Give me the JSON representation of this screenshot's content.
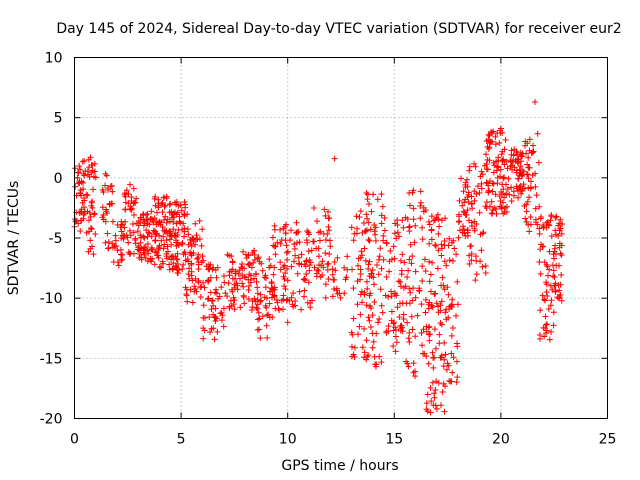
{
  "chart_data": {
    "type": "scatter",
    "title": "Day 145 of 2024, Sidereal Day-to-day VTEC variation (SDTVAR) for receiver eur2",
    "xlabel": "GPS time / hours",
    "ylabel": "SDTVAR / TECUs",
    "xlim": [
      0,
      25
    ],
    "ylim": [
      -20,
      10
    ],
    "xticks": [
      0,
      5,
      10,
      15,
      20,
      25
    ],
    "yticks": [
      10,
      5,
      0,
      -5,
      -10,
      -15,
      -20
    ],
    "grid": true,
    "marker": "+",
    "series": [
      {
        "name": "SDTVAR",
        "color": "#ff0000",
        "clusters": [
          {
            "x0": 0.0,
            "x1": 0.55,
            "ymin": -4.5,
            "ymax": 1.5,
            "n": 45
          },
          {
            "x0": 0.55,
            "x1": 1.0,
            "ymin": -6.5,
            "ymax": 1.8,
            "n": 35
          },
          {
            "x0": 1.3,
            "x1": 1.8,
            "ymin": -6.0,
            "ymax": 0.5,
            "n": 30
          },
          {
            "x0": 1.8,
            "x1": 2.3,
            "ymin": -7.5,
            "ymax": -3.5,
            "n": 25
          },
          {
            "x0": 2.3,
            "x1": 2.9,
            "ymin": -6.5,
            "ymax": -0.5,
            "n": 40
          },
          {
            "x0": 2.9,
            "x1": 3.6,
            "ymin": -7.0,
            "ymax": -3.0,
            "n": 55
          },
          {
            "x0": 3.6,
            "x1": 4.4,
            "ymin": -7.5,
            "ymax": -1.5,
            "n": 75
          },
          {
            "x0": 4.4,
            "x1": 5.2,
            "ymin": -8.0,
            "ymax": -2.0,
            "n": 80
          },
          {
            "x0": 5.2,
            "x1": 6.0,
            "ymin": -10.5,
            "ymax": -3.0,
            "n": 60
          },
          {
            "x0": 6.0,
            "x1": 7.0,
            "ymin": -13.5,
            "ymax": -6.5,
            "n": 55
          },
          {
            "x0": 7.0,
            "x1": 8.5,
            "ymin": -11.0,
            "ymax": -6.0,
            "n": 80
          },
          {
            "x0": 8.5,
            "x1": 9.3,
            "ymin": -13.5,
            "ymax": -6.5,
            "n": 50
          },
          {
            "x0": 9.3,
            "x1": 10.5,
            "ymin": -11.0,
            "ymax": -3.5,
            "n": 70
          },
          {
            "x0": 10.5,
            "x1": 11.2,
            "ymin": -11.0,
            "ymax": -4.0,
            "n": 35
          },
          {
            "x0": 11.2,
            "x1": 12.0,
            "ymin": -10.0,
            "ymax": -2.5,
            "n": 40
          },
          {
            "x0": 12.0,
            "x1": 12.8,
            "ymin": -10.0,
            "ymax": -6.5,
            "n": 20
          },
          {
            "x0": 13.0,
            "x1": 13.6,
            "ymin": -15.0,
            "ymax": -2.5,
            "n": 40
          },
          {
            "x0": 13.6,
            "x1": 14.6,
            "ymin": -16.0,
            "ymax": -1.0,
            "n": 80
          },
          {
            "x0": 14.6,
            "x1": 15.5,
            "ymin": -14.5,
            "ymax": -3.5,
            "n": 60
          },
          {
            "x0": 15.5,
            "x1": 16.4,
            "ymin": -16.5,
            "ymax": -1.0,
            "n": 60
          },
          {
            "x0": 16.4,
            "x1": 17.4,
            "ymin": -19.5,
            "ymax": -2.5,
            "n": 100
          },
          {
            "x0": 17.4,
            "x1": 18.0,
            "ymin": -17.5,
            "ymax": -4.0,
            "n": 40
          },
          {
            "x0": 18.0,
            "x1": 18.5,
            "ymin": -5.0,
            "ymax": 0.0,
            "n": 35
          },
          {
            "x0": 18.5,
            "x1": 19.3,
            "ymin": -8.0,
            "ymax": 1.5,
            "n": 45
          },
          {
            "x0": 19.3,
            "x1": 20.3,
            "ymin": -3.0,
            "ymax": 4.0,
            "n": 90
          },
          {
            "x0": 20.3,
            "x1": 21.1,
            "ymin": -2.0,
            "ymax": 2.5,
            "n": 60
          },
          {
            "x0": 21.1,
            "x1": 21.8,
            "ymin": -4.5,
            "ymax": 4.0,
            "n": 45
          },
          {
            "x0": 21.8,
            "x1": 22.5,
            "ymin": -13.5,
            "ymax": -3.0,
            "n": 60
          },
          {
            "x0": 22.5,
            "x1": 22.9,
            "ymin": -10.5,
            "ymax": -3.0,
            "n": 40
          }
        ],
        "points": [
          [
            12.2,
            1.6
          ],
          [
            21.6,
            6.3
          ],
          [
            10.0,
            -12.0
          ],
          [
            15.9,
            -16.2
          ],
          [
            16.7,
            -19.5
          ],
          [
            17.0,
            -19.2
          ],
          [
            13.3,
            -13.0
          ],
          [
            14.1,
            -15.5
          ],
          [
            20.0,
            4.1
          ],
          [
            19.5,
            3.0
          ],
          [
            0.45,
            1.4
          ],
          [
            0.75,
            1.7
          ],
          [
            4.8,
            -2.0
          ],
          [
            6.7,
            -12.8
          ],
          [
            18.8,
            -8.5
          ]
        ]
      }
    ]
  }
}
